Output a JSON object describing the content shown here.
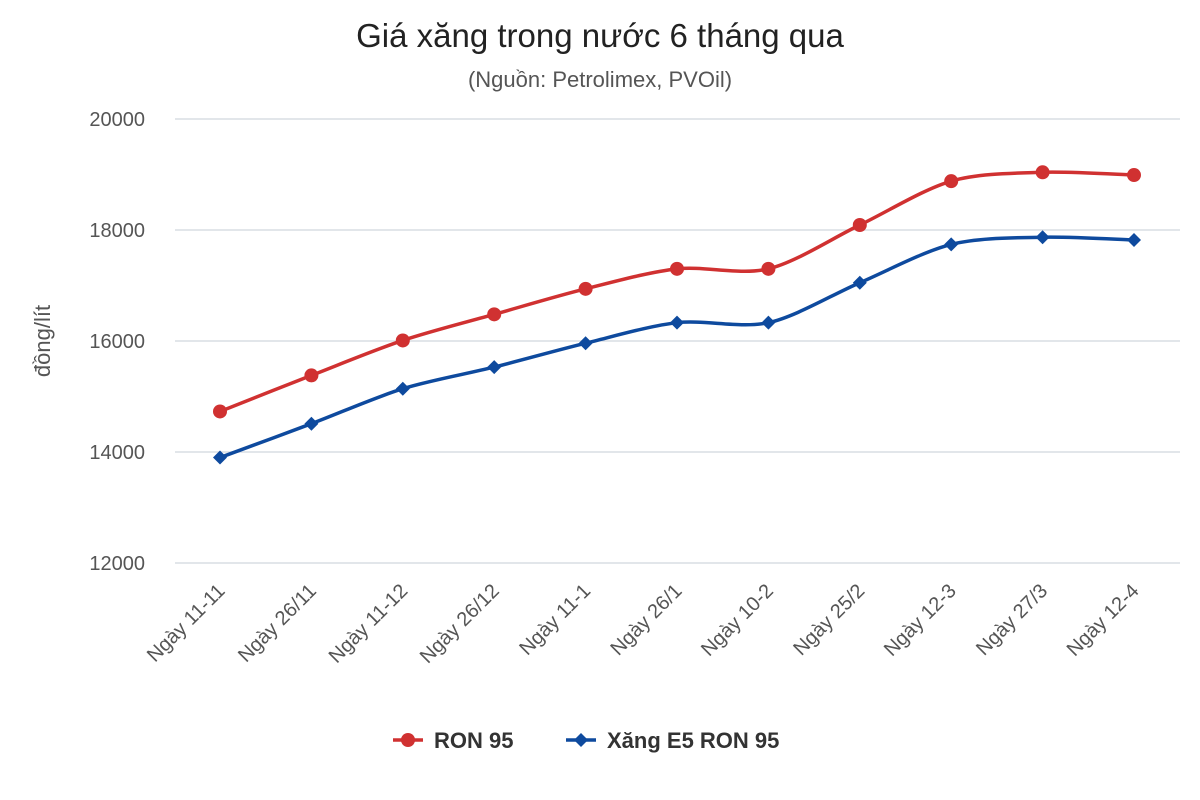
{
  "chart_data": {
    "type": "line",
    "title": "Giá xăng trong nước 6 tháng qua",
    "subtitle": "(Nguồn: Petrolimex, PVOil)",
    "ylabel": "đồng/lít",
    "xlabel": "",
    "categories": [
      "Ngày 11-11",
      "Ngày 26/11",
      "Ngày 11-12",
      "Ngày 26/12",
      "Ngày 11-1",
      "Ngày 26/1",
      "Ngày 10-2",
      "Ngày 25/2",
      "Ngày 12-3",
      "Ngày 27/3",
      "Ngày 12-4"
    ],
    "ylim": [
      12000,
      20000
    ],
    "yticks": [
      12000,
      14000,
      16000,
      18000,
      20000
    ],
    "grid": true,
    "legend_position": "bottom",
    "series": [
      {
        "name": "RON 95",
        "color": "#d03131",
        "marker": "circle",
        "values": [
          14730,
          15380,
          16010,
          16480,
          16940,
          17300,
          17300,
          18090,
          18880,
          19040,
          18990
        ]
      },
      {
        "name": "Xăng E5 RON 95",
        "color": "#0e4a9e",
        "marker": "diamond",
        "values": [
          13900,
          14510,
          15140,
          15530,
          15960,
          16330,
          16330,
          17050,
          17740,
          17870,
          17820
        ]
      }
    ]
  }
}
